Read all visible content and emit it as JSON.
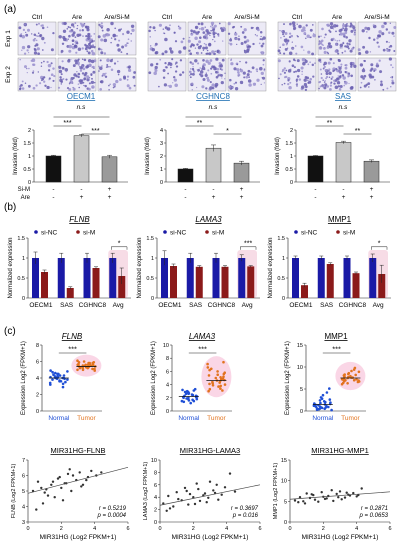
{
  "panel_labels": {
    "a": "(a)",
    "b": "(b)",
    "c": "(c)"
  },
  "section_a": {
    "row_labels": [
      "Exp 1",
      "Exp 2"
    ],
    "groups": [
      {
        "name": "OECM1",
        "conditions": [
          "Ctrl",
          "Are",
          "Are/Si-M"
        ]
      },
      {
        "name": "CGHNC8",
        "conditions": [
          "Ctrl",
          "Are",
          "Are/Si-M"
        ]
      },
      {
        "name": "SAS",
        "conditions": [
          "Ctrl",
          "Are",
          "Are/Si-M"
        ]
      }
    ],
    "ns_label": "n.s",
    "treatment_rows": [
      "Si-M",
      "Are"
    ]
  },
  "section_b": {
    "legend": [
      "si-NC",
      "si-M"
    ],
    "colors": {
      "si_nc": "#1a1aa6",
      "si_m": "#8b1a1a",
      "glow": "#e89bb8"
    }
  },
  "section_c": {
    "legend_box": [
      "r = 0.5219 / p = 0.0004",
      "r = 0.3697 / p = 0.016",
      "r = 0.2871 / p = 0.0653"
    ],
    "colors": {
      "normal": "#1f4fd6",
      "tumor": "#e2731e",
      "glow": "#f5a3c7"
    }
  },
  "chart_data": [
    {
      "type": "bar",
      "panel": "a",
      "title": "OECM1",
      "categories": [
        "Ctrl",
        "Are",
        "Are/Si-M"
      ],
      "treatments": {
        "Si-M": [
          "-",
          "-",
          "+"
        ],
        "Are": [
          "-",
          "+",
          "+"
        ]
      },
      "values": [
        1.0,
        1.78,
        0.97
      ],
      "errors": [
        0.03,
        0.05,
        0.06
      ],
      "ylabel": "Invasion (fold)",
      "ylim": [
        0,
        2
      ],
      "yticks": [
        0,
        0.5,
        1,
        1.5,
        2
      ],
      "significance": [
        {
          "from": 0,
          "to": 1,
          "label": "***"
        },
        {
          "from": 1,
          "to": 2,
          "label": "***"
        },
        {
          "from": 0,
          "to": 2,
          "label": "n.s"
        }
      ]
    },
    {
      "type": "bar",
      "panel": "a",
      "title": "CGHNC8",
      "categories": [
        "Ctrl",
        "Are",
        "Are/Si-M"
      ],
      "treatments": {
        "Si-M": [
          "-",
          "-",
          "+"
        ],
        "Are": [
          "-",
          "+",
          "+"
        ]
      },
      "values": [
        1.0,
        2.6,
        1.45
      ],
      "errors": [
        0.05,
        0.25,
        0.15
      ],
      "ylabel": "Invasion (fold)",
      "ylim": [
        0,
        4
      ],
      "yticks": [
        0,
        1,
        2,
        3,
        4
      ],
      "significance": [
        {
          "from": 0,
          "to": 1,
          "label": "**"
        },
        {
          "from": 1,
          "to": 2,
          "label": "*"
        },
        {
          "from": 0,
          "to": 2,
          "label": "n.s"
        }
      ]
    },
    {
      "type": "bar",
      "panel": "a",
      "title": "SAS",
      "categories": [
        "Ctrl",
        "Are",
        "Are/Si-M"
      ],
      "treatments": {
        "Si-M": [
          "-",
          "-",
          "+"
        ],
        "Are": [
          "-",
          "+",
          "+"
        ]
      },
      "values": [
        1.0,
        1.52,
        0.8
      ],
      "errors": [
        0.02,
        0.05,
        0.05
      ],
      "ylabel": "Invasion (fold)",
      "ylim": [
        0,
        2
      ],
      "yticks": [
        0,
        0.5,
        1,
        1.5,
        2
      ],
      "significance": [
        {
          "from": 0,
          "to": 1,
          "label": "**"
        },
        {
          "from": 1,
          "to": 2,
          "label": "**"
        },
        {
          "from": 0,
          "to": 2,
          "label": "n.s"
        }
      ]
    },
    {
      "type": "bar",
      "panel": "b",
      "title": "FLNB",
      "categories": [
        "OECM1",
        "SAS",
        "CGHNC8",
        "Avg"
      ],
      "series": [
        {
          "name": "si-NC",
          "values": [
            1.0,
            1.0,
            1.0,
            1.0
          ],
          "errors": [
            0.15,
            0.12,
            0.12,
            0.12
          ]
        },
        {
          "name": "si-M",
          "values": [
            0.65,
            0.25,
            0.75,
            0.55
          ],
          "errors": [
            0.05,
            0.03,
            0.03,
            0.2
          ]
        }
      ],
      "ylabel": "Normalized expression",
      "ylim": [
        0,
        1.5
      ],
      "yticks": [
        0,
        0.5,
        1,
        1.5
      ],
      "significance": [
        {
          "category": 3,
          "label": "*"
        }
      ],
      "highlight": [
        3
      ]
    },
    {
      "type": "bar",
      "panel": "b",
      "title": "LAMA3",
      "categories": [
        "OECM1",
        "SAS",
        "CGHNC8",
        "Avg"
      ],
      "series": [
        {
          "name": "si-NC",
          "values": [
            1.0,
            1.0,
            1.0,
            1.0
          ],
          "errors": [
            0.18,
            0.12,
            0.12,
            0.08
          ]
        },
        {
          "name": "si-M",
          "values": [
            0.8,
            0.78,
            0.78,
            0.79
          ],
          "errors": [
            0.05,
            0.03,
            0.03,
            0.02
          ]
        }
      ],
      "ylabel": "Normalized expression",
      "ylim": [
        0,
        1.5
      ],
      "yticks": [
        0,
        0.5,
        1,
        1.5
      ],
      "significance": [
        {
          "category": 3,
          "label": "***"
        }
      ],
      "highlight": [
        3
      ]
    },
    {
      "type": "bar",
      "panel": "b",
      "title": "MMP1",
      "categories": [
        "OECM1",
        "SAS",
        "CGHNC8",
        "Avg"
      ],
      "series": [
        {
          "name": "si-NC",
          "values": [
            1.0,
            1.0,
            1.0,
            1.0
          ],
          "errors": [
            0.05,
            0.05,
            0.05,
            0.1
          ]
        },
        {
          "name": "si-M",
          "values": [
            0.32,
            0.85,
            0.62,
            0.6
          ],
          "errors": [
            0.05,
            0.03,
            0.03,
            0.22
          ]
        }
      ],
      "ylabel": "Normalized expression",
      "ylim": [
        0,
        1.5
      ],
      "yticks": [
        0,
        0.5,
        1,
        1.5
      ],
      "significance": [
        {
          "category": 3,
          "label": "*"
        }
      ],
      "highlight": [
        3
      ]
    },
    {
      "type": "scatter",
      "panel": "c",
      "title": "FLNB",
      "categories": [
        "Normal",
        "Tumor"
      ],
      "series": [
        {
          "name": "Normal",
          "values": [
            4.1,
            3.6,
            4.4,
            3.9,
            4.7,
            3.2,
            4.0,
            4.3,
            3.5,
            4.8,
            4.2,
            3.8,
            4.5,
            2.9,
            4.1,
            3.7,
            4.6,
            4.0,
            3.3,
            4.4,
            3.9,
            4.2,
            3.6,
            4.9,
            4.1,
            3.4,
            4.3,
            3.8,
            4.0,
            4.5
          ],
          "mean": 4.0
        },
        {
          "name": "Tumor",
          "values": [
            5.3,
            5.6,
            5.0,
            5.8,
            5.4,
            5.9,
            5.2,
            5.5,
            5.7,
            4.9,
            5.6,
            5.3,
            6.1,
            5.1,
            5.4,
            5.8,
            5.5,
            5.2,
            5.9,
            5.6,
            5.0,
            5.3,
            5.7,
            5.4,
            6.0,
            5.5,
            5.1,
            5.6,
            5.2,
            5.8
          ],
          "mean": 5.4
        }
      ],
      "ylabel": "Expression Log2 (FPKM+1)",
      "ylim": [
        0,
        8
      ],
      "yticks": [
        0,
        2,
        4,
        6,
        8
      ],
      "significance": "***"
    },
    {
      "type": "scatter",
      "panel": "c",
      "title": "LAMA3",
      "categories": [
        "Normal",
        "Tumor"
      ],
      "series": [
        {
          "name": "Normal",
          "values": [
            2.4,
            1.8,
            3.1,
            2.2,
            1.5,
            2.9,
            2.0,
            1.2,
            2.6,
            3.3,
            1.9,
            2.3,
            2.8,
            1.6,
            2.1,
            2.5,
            3.0,
            1.7,
            2.2,
            2.7,
            1.4,
            2.4,
            2.0,
            3.2,
            2.6,
            1.8,
            2.3,
            2.9,
            1.5,
            2.1
          ],
          "mean": 2.2
        },
        {
          "name": "Tumor",
          "values": [
            4.8,
            3.9,
            5.5,
            6.2,
            3.4,
            4.6,
            7.1,
            5.0,
            4.2,
            3.1,
            5.8,
            4.4,
            6.6,
            3.7,
            5.2,
            4.0,
            4.9,
            6.0,
            3.3,
            5.4,
            4.5,
            7.4,
            3.8,
            5.1,
            4.3,
            6.4,
            3.0,
            5.6,
            4.7,
            4.1
          ],
          "mean": 4.6
        }
      ],
      "ylabel": "Expression Log2 (FPKM+1)",
      "ylim": [
        0,
        10
      ],
      "yticks": [
        0,
        2,
        4,
        6,
        8,
        10
      ],
      "significance": "***"
    },
    {
      "type": "scatter",
      "panel": "c",
      "title": "MMP1",
      "categories": [
        "Normal",
        "Tumor"
      ],
      "series": [
        {
          "name": "Normal",
          "values": [
            1.2,
            0.5,
            2.4,
            0.8,
            3.1,
            1.6,
            0.3,
            2.0,
            1.0,
            4.2,
            0.7,
            1.8,
            2.8,
            0.4,
            1.4,
            0.9,
            3.6,
            1.1,
            0.6,
            2.2,
            1.5,
            0.2,
            2.6,
            1.3,
            0.8,
            5.1,
            1.7,
            0.5,
            1.9,
            1.0
          ],
          "mean": 1.5
        },
        {
          "name": "Tumor",
          "values": [
            7.2,
            6.8,
            8.1,
            7.6,
            6.3,
            8.9,
            7.0,
            7.9,
            6.6,
            9.4,
            7.3,
            8.4,
            6.1,
            7.7,
            8.2,
            7.1,
            6.9,
            9.1,
            7.5,
            8.0,
            6.4,
            7.8,
            8.6,
            7.2,
            6.7,
            7.4,
            8.3,
            7.0,
            9.8,
            7.6
          ],
          "mean": 7.5
        }
      ],
      "ylabel": "Expression Log2 (FPKM+1)",
      "ylim": [
        0,
        15
      ],
      "yticks": [
        0,
        5,
        10,
        15
      ],
      "significance": "***"
    },
    {
      "type": "scatter",
      "panel": "c",
      "title": "MIR31HG-FLNB",
      "x": [
        0.3,
        0.6,
        0.9,
        1.1,
        1.4,
        1.6,
        1.8,
        2.0,
        2.2,
        2.4,
        2.6,
        2.9,
        3.1,
        3.3,
        3.6,
        3.8,
        4.1,
        0.5,
        1.0,
        1.5,
        2.1,
        2.7,
        3.2,
        0.8,
        1.9,
        2.5,
        3.5,
        4.4,
        1.2,
        2.3
      ],
      "y": [
        5.0,
        5.6,
        4.2,
        5.1,
        5.4,
        4.6,
        5.8,
        5.2,
        5.5,
        6.1,
        5.0,
        5.7,
        6.2,
        5.4,
        5.9,
        6.3,
        6.0,
        3.8,
        4.9,
        5.6,
        4.4,
        6.0,
        5.3,
        5.2,
        5.9,
        6.4,
        5.7,
        6.2,
        4.7,
        5.5
      ],
      "fit": {
        "slope": 0.28,
        "intercept": 4.85
      },
      "xlabel": "MIR31HG (Log2 FPKM+1)",
      "ylabel": "FLNB (Log2 FPKM+1)",
      "xlim": [
        0,
        6
      ],
      "ylim": [
        3,
        7
      ],
      "xticks": [
        0,
        2,
        4,
        6
      ],
      "yticks": [
        3,
        4,
        5,
        6,
        7
      ],
      "stats": [
        "r = 0.5219",
        "p = 0.0004"
      ]
    },
    {
      "type": "scatter",
      "panel": "c",
      "title": "MIR31HG-LAMA3",
      "x": [
        0.2,
        0.5,
        0.8,
        1.0,
        1.3,
        1.5,
        1.7,
        2.0,
        2.2,
        2.4,
        2.7,
        2.9,
        3.2,
        3.4,
        3.7,
        3.9,
        4.2,
        4.5,
        0.6,
        1.1,
        1.6,
        2.1,
        2.6,
        3.0,
        3.5,
        0.4,
        1.8,
        2.3,
        2.8,
        3.3
      ],
      "y": [
        3.0,
        4.2,
        2.5,
        4.8,
        3.5,
        5.5,
        2.8,
        4.0,
        6.2,
        3.4,
        4.6,
        3.9,
        5.1,
        6.0,
        4.4,
        5.6,
        7.8,
        4.9,
        2.2,
        3.7,
        5.0,
        2.9,
        4.3,
        6.5,
        3.6,
        1.8,
        4.5,
        5.3,
        3.2,
        4.7
      ],
      "fit": {
        "slope": 0.55,
        "intercept": 2.7
      },
      "xlabel": "MIR31HG (Log2 FPKM+1)",
      "ylabel": "LAMA3 (Log2 FPKM+1)",
      "xlim": [
        0,
        6
      ],
      "ylim": [
        0,
        10
      ],
      "xticks": [
        0,
        2,
        4,
        6
      ],
      "yticks": [
        0,
        2,
        4,
        6,
        8,
        10
      ],
      "stats": [
        "r = 0.3697",
        "p = 0.016"
      ]
    },
    {
      "type": "scatter",
      "panel": "c",
      "title": "MIR31HG-MMP1",
      "x": [
        0.3,
        0.6,
        0.9,
        1.2,
        1.4,
        1.7,
        1.9,
        2.1,
        2.3,
        2.6,
        2.8,
        3.0,
        3.3,
        3.5,
        3.8,
        4.0,
        4.3,
        0.5,
        1.0,
        1.5,
        2.0,
        2.5,
        3.1,
        3.6,
        0.8,
        1.3,
        2.2,
        2.9,
        3.4,
        4.1
      ],
      "y": [
        5.2,
        6.0,
        4.5,
        5.8,
        6.5,
        4.9,
        7.2,
        5.6,
        6.3,
        5.1,
        6.8,
        7.4,
        5.9,
        6.6,
        7.0,
        6.2,
        8.1,
        4.8,
        6.9,
        5.4,
        6.1,
        7.7,
        5.5,
        6.4,
        5.0,
        6.7,
        5.7,
        6.0,
        7.1,
        6.5
      ],
      "fit": {
        "slope": 0.3,
        "intercept": 5.5
      },
      "xlabel": "MIR31HG (Log2 FPKM+1)",
      "ylabel": "MMP1 (Log2 FPKM+1)",
      "xlim": [
        0,
        6
      ],
      "ylim": [
        0,
        15
      ],
      "xticks": [
        0,
        2,
        4,
        6
      ],
      "yticks": [
        0,
        5,
        10,
        15
      ],
      "stats": [
        "r = 0.2871",
        "p = 0.0653"
      ]
    }
  ]
}
